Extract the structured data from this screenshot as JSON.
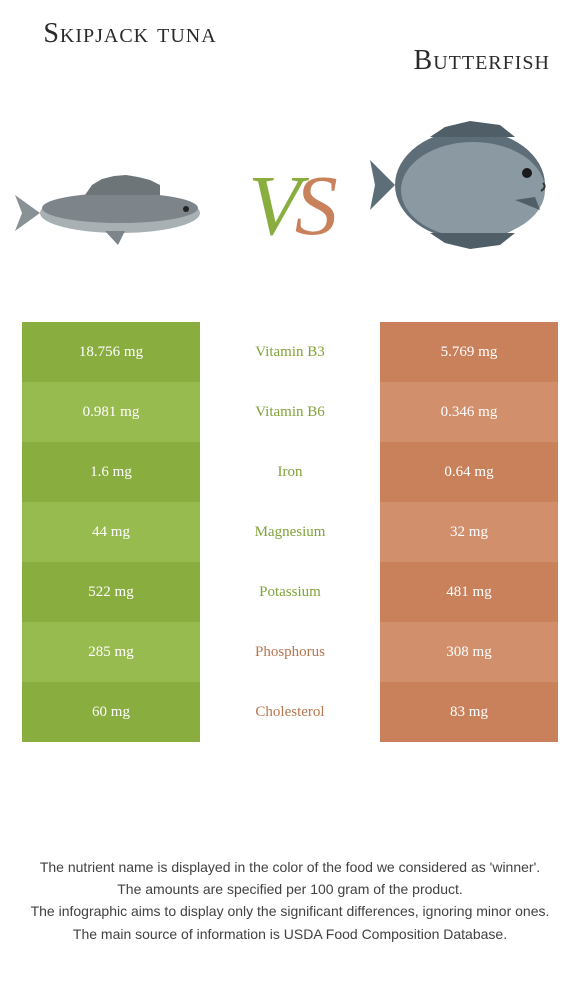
{
  "header": {
    "left_title": "Skipjack tuna",
    "right_title": "Butterfish",
    "vs_v": "V",
    "vs_s": "S"
  },
  "colors": {
    "left_primary": "#89ad3f",
    "left_alt": "#98bb4f",
    "right_primary": "#c9815c",
    "right_alt": "#d18f6c",
    "label_green": "#7fa238",
    "label_brown": "#b8764f",
    "background": "#ffffff"
  },
  "rows": [
    {
      "left": "18.756 mg",
      "label": "Vitamin B3",
      "right": "5.769 mg",
      "winner": "left"
    },
    {
      "left": "0.981 mg",
      "label": "Vitamin B6",
      "right": "0.346 mg",
      "winner": "left"
    },
    {
      "left": "1.6 mg",
      "label": "Iron",
      "right": "0.64 mg",
      "winner": "left"
    },
    {
      "left": "44 mg",
      "label": "Magnesium",
      "right": "32 mg",
      "winner": "left"
    },
    {
      "left": "522 mg",
      "label": "Potassium",
      "right": "481 mg",
      "winner": "left"
    },
    {
      "left": "285 mg",
      "label": "Phosphorus",
      "right": "308 mg",
      "winner": "right"
    },
    {
      "left": "60 mg",
      "label": "Cholesterol",
      "right": "83 mg",
      "winner": "right"
    }
  ],
  "footer": {
    "l1": "The nutrient name is displayed in the color of the food we considered as 'winner'.",
    "l2": "The amounts are specified per 100 gram of the product.",
    "l3": "The infographic aims to display only the significant differences, ignoring minor ones.",
    "l4": "The main source of information is USDA Food Composition Database."
  }
}
